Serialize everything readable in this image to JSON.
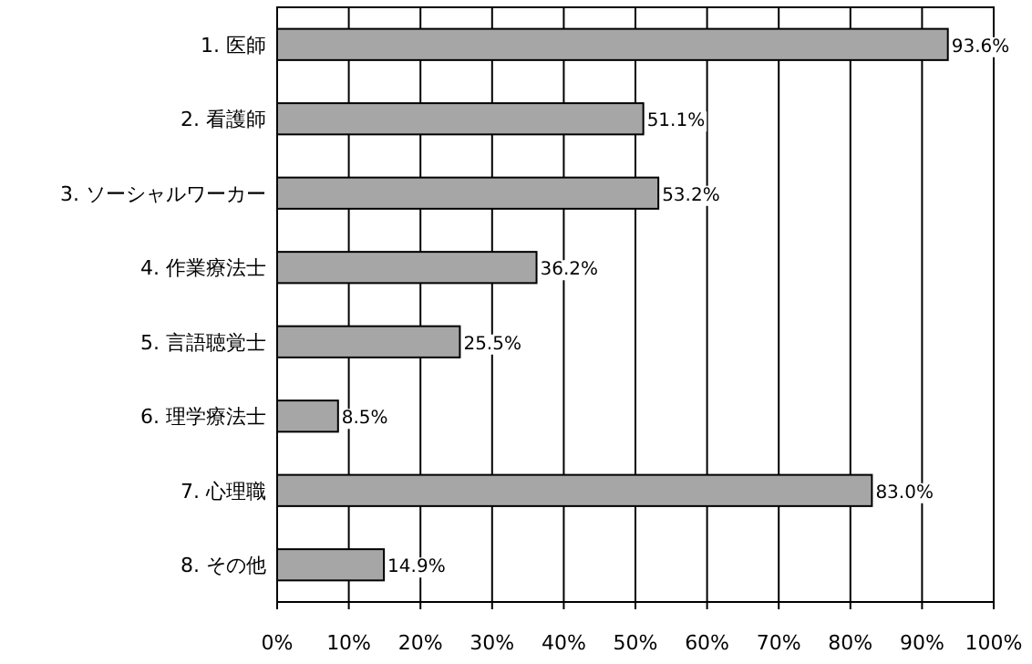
{
  "chart_data": {
    "type": "bar",
    "orientation": "horizontal",
    "categories": [
      "1. 医師",
      "2. 看護師",
      "3. ソーシャルワーカー",
      "4. 作業療法士",
      "5. 言語聴覚士",
      "6. 理学療法士",
      "7. 心理職",
      "8. その他"
    ],
    "values": [
      93.6,
      51.1,
      53.2,
      36.2,
      25.5,
      8.5,
      83.0,
      14.9
    ],
    "value_labels": [
      "93.6%",
      "51.1%",
      "53.2%",
      "36.2%",
      "25.5%",
      "8.5%",
      "83.0%",
      "14.9%"
    ],
    "color": "#a6a6a6",
    "xlim": [
      0,
      100
    ],
    "xticks": [
      {
        "value": 0,
        "label": "0%"
      },
      {
        "value": 10,
        "label": "10%"
      },
      {
        "value": 20,
        "label": "20%"
      },
      {
        "value": 30,
        "label": "30%"
      },
      {
        "value": 40,
        "label": "40%"
      },
      {
        "value": 50,
        "label": "50%"
      },
      {
        "value": 60,
        "label": "60%"
      },
      {
        "value": 70,
        "label": "70%"
      },
      {
        "value": 80,
        "label": "80%"
      },
      {
        "value": 90,
        "label": "90%"
      },
      {
        "value": 100,
        "label": "100%"
      }
    ],
    "grid": "x"
  }
}
